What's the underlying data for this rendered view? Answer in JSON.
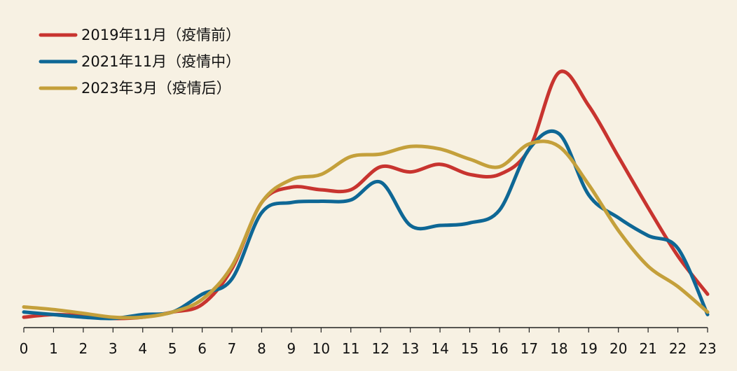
{
  "chart_data": {
    "type": "line",
    "title": "",
    "xlabel": "",
    "ylabel": "",
    "x": [
      0,
      1,
      2,
      3,
      4,
      5,
      6,
      7,
      8,
      9,
      10,
      11,
      12,
      13,
      14,
      15,
      16,
      17,
      18,
      19,
      20,
      21,
      22,
      23
    ],
    "ylim": [
      0,
      100
    ],
    "grid": false,
    "y_axis_visible": false,
    "legend_position": "top-left",
    "series": [
      {
        "name": "2019年11月（疫情前）",
        "color": "#c8342f",
        "values": [
          3,
          4,
          3.5,
          2.5,
          3,
          5,
          8,
          22,
          48,
          54,
          53,
          53,
          62,
          60,
          63,
          59,
          59,
          69,
          99,
          86,
          66,
          46,
          27,
          12
        ]
      },
      {
        "name": "2021年11月（疫情中）",
        "color": "#0e6795",
        "values": [
          5,
          4,
          3,
          2.5,
          4,
          5,
          12,
          18,
          44,
          48,
          48.5,
          49,
          56,
          39,
          39,
          40,
          45,
          69,
          75,
          51,
          42,
          35,
          30,
          4
        ]
      },
      {
        "name": "2023年3月（疫情后）",
        "color": "#c4a03b",
        "values": [
          7,
          6,
          4.5,
          3,
          3,
          5,
          10,
          23,
          48,
          57,
          59,
          66,
          67,
          70,
          69,
          65,
          62,
          71,
          70,
          55,
          37,
          23,
          15,
          5
        ]
      }
    ]
  }
}
